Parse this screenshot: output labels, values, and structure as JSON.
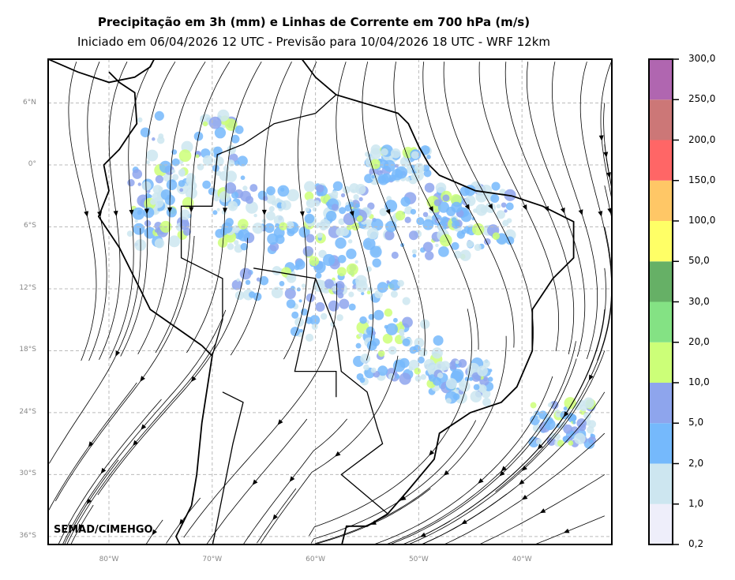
{
  "header": {
    "title": "Precipitação em 3h (mm) e Linhas de Corrente em 700 hPa (m/s)",
    "subtitle": "Iniciado em 06/04/2026 12 UTC - Previsão para 10/04/2026 18 UTC - WRF 12km"
  },
  "map": {
    "lat_labels": [
      "6°N",
      "0°",
      "6°S",
      "12°S",
      "18°S",
      "24°S",
      "30°S",
      "36°S"
    ],
    "lat_values": [
      6,
      0,
      -6,
      -12,
      -18,
      -24,
      -30,
      -36
    ],
    "lon_labels": [
      "80°W",
      "70°W",
      "60°W",
      "50°W",
      "40°W"
    ],
    "lon_values": [
      -80,
      -70,
      -60,
      -50,
      -40
    ],
    "credit": "SEMAD/CIMEHGO"
  },
  "colorbar": {
    "labels": [
      "0,2",
      "1,0",
      "2,0",
      "5,0",
      "10,0",
      "20,0",
      "30,0",
      "50,0",
      "100,0",
      "150,0",
      "200,0",
      "250,0",
      "300,0"
    ],
    "colors": [
      "#eeeefa",
      "#cde6f0",
      "#75b9fc",
      "#8ea5ed",
      "#ccff78",
      "#84e284",
      "#66b066",
      "#ffff66",
      "#ffc766",
      "#ff6666",
      "#cc7777",
      "#b066b0"
    ]
  }
}
